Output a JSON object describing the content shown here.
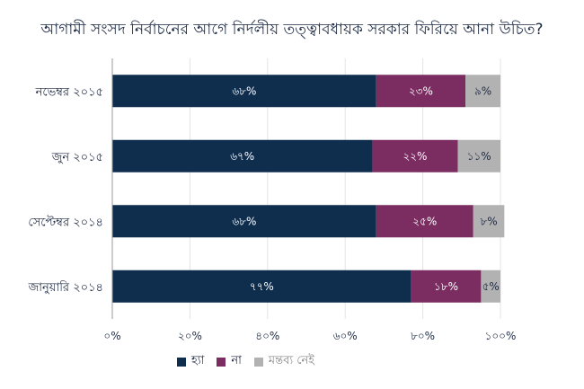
{
  "chart_data": {
    "type": "bar",
    "orientation": "horizontal",
    "stacked": true,
    "title": "আগামী সংসদ নির্বাচনের আগে নির্দলীয় তত্ত্বাবধায়ক সরকার ফিরিয়ে আনা উচিত?",
    "categories": [
      "নভেম্বর ২০১৫",
      "জুন ২০১৫",
      "সেপ্টেম্বর ২০১৪",
      "জানুয়ারি ২০১৪"
    ],
    "series": [
      {
        "name": "হ্যা",
        "color": "#0f2e4e",
        "values": [
          68,
          67,
          68,
          77
        ],
        "labels": [
          "৬৮%",
          "৬৭%",
          "৬৮%",
          "৭৭%"
        ]
      },
      {
        "name": "না",
        "color": "#7b2d62",
        "values": [
          23,
          22,
          25,
          18
        ],
        "labels": [
          "২৩%",
          "২২%",
          "২৫%",
          "১৮%"
        ]
      },
      {
        "name": "মন্তব্য নেই",
        "color": "#b2b2b2",
        "values": [
          9,
          11,
          8,
          5
        ],
        "labels": [
          "৯%",
          "১১%",
          "৮%",
          "৫%"
        ]
      }
    ],
    "xlim": [
      0,
      100
    ],
    "xticks": [
      0,
      20,
      40,
      60,
      80,
      100
    ],
    "xtick_labels": [
      "০%",
      "২০%",
      "৪০%",
      "৬০%",
      "৮০%",
      "১০০%"
    ],
    "grid": true,
    "legend_position": "bottom"
  }
}
